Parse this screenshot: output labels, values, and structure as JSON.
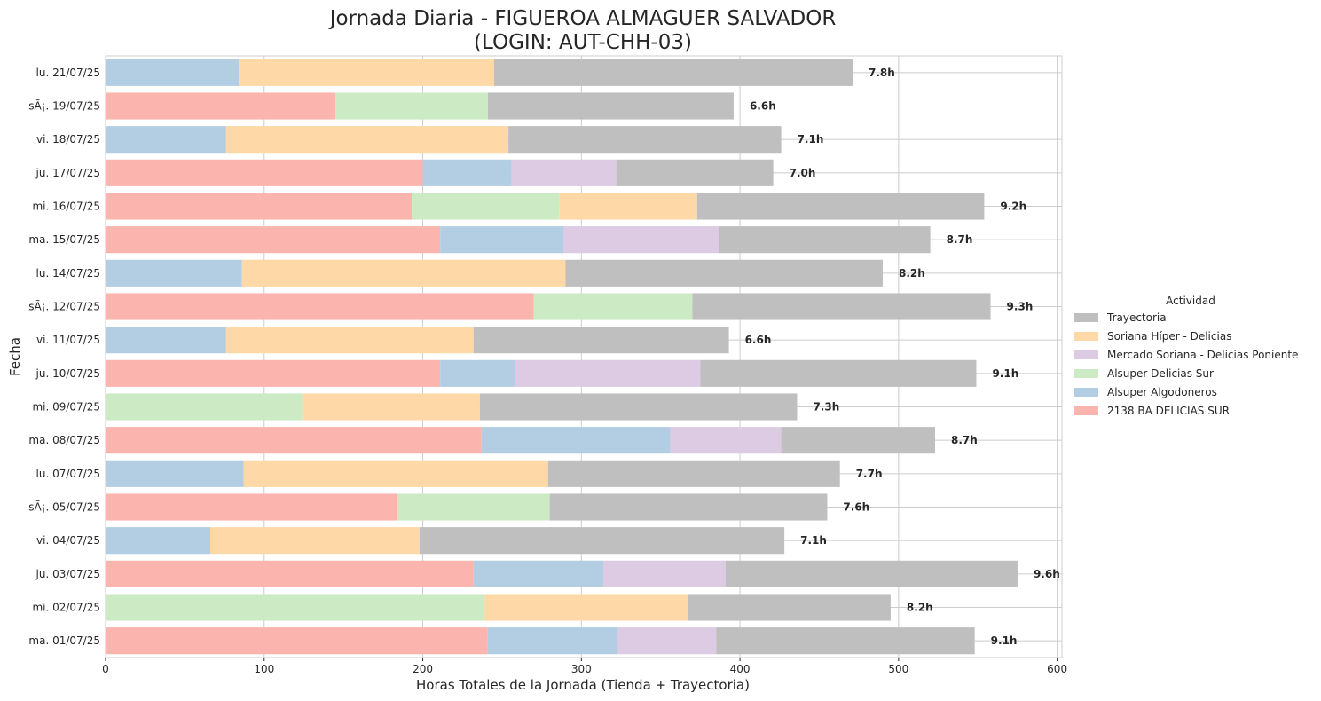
{
  "chart_data": {
    "type": "bar",
    "orientation": "horizontal",
    "stacked": true,
    "title": "Jornada Diaria - FIGUEROA ALMAGUER SALVADOR",
    "subtitle": "(LOGIN: AUT-CHH-03)",
    "xlabel": "Horas Totales de la Jornada (Tienda + Trayectoria)",
    "ylabel": "Fecha",
    "xlim": [
      0,
      603
    ],
    "xticks": [
      0,
      100,
      200,
      300,
      400,
      500,
      600
    ],
    "grid": true,
    "legend_title": "Actividad",
    "legend_position": "right",
    "categories": [
      "lu. 21/07/25",
      "sÃ¡. 19/07/25",
      "vi. 18/07/25",
      "ju. 17/07/25",
      "mi. 16/07/25",
      "ma. 15/07/25",
      "lu. 14/07/25",
      "sÃ¡. 12/07/25",
      "vi. 11/07/25",
      "ju. 10/07/25",
      "mi. 09/07/25",
      "ma. 08/07/25",
      "lu. 07/07/25",
      "sÃ¡. 05/07/25",
      "vi. 04/07/25",
      "ju. 03/07/25",
      "mi. 02/07/25",
      "ma. 01/07/25"
    ],
    "totals_labels": [
      "7.8h",
      "6.6h",
      "7.1h",
      "7.0h",
      "9.2h",
      "8.7h",
      "8.2h",
      "9.3h",
      "6.6h",
      "9.1h",
      "7.3h",
      "8.7h",
      "7.7h",
      "7.6h",
      "7.1h",
      "9.6h",
      "8.2h",
      "9.1h"
    ],
    "stack_order": [
      "2138 BA DELICIAS SUR",
      "Alsuper Algodoneros",
      "Alsuper Delicias Sur",
      "Mercado Soriana - Delicias Poniente",
      "Soriana Híper - Delicias",
      "Trayectoria"
    ],
    "series": [
      {
        "name": "Trayectoria",
        "color": "#bfbfbf",
        "values": [
          226,
          155,
          172,
          99,
          181,
          133,
          200,
          188,
          161,
          174,
          200,
          97,
          184,
          175,
          230,
          184,
          128,
          163
        ]
      },
      {
        "name": "Soriana Híper - Delicias",
        "color": "#fed8a6",
        "values": [
          161,
          0,
          178,
          0,
          87,
          0,
          204,
          0,
          156,
          0,
          112,
          0,
          192,
          0,
          132,
          0,
          128,
          0
        ]
      },
      {
        "name": "Mercado Soriana - Delicias Poniente",
        "color": "#ddcae3",
        "values": [
          0,
          0,
          0,
          66,
          0,
          98,
          0,
          0,
          0,
          117,
          0,
          70,
          0,
          0,
          0,
          77,
          0,
          62
        ]
      },
      {
        "name": "Alsuper Delicias Sur",
        "color": "#ccebc5",
        "values": [
          0,
          96,
          0,
          0,
          93,
          0,
          0,
          100,
          0,
          0,
          124,
          0,
          0,
          96,
          0,
          0,
          239,
          0
        ]
      },
      {
        "name": "Alsuper Algodoneros",
        "color": "#b3cde3",
        "values": [
          84,
          0,
          76,
          56,
          0,
          78,
          86,
          0,
          76,
          47,
          0,
          119,
          87,
          0,
          66,
          82,
          0,
          82
        ]
      },
      {
        "name": "2138 BA DELICIAS SUR",
        "color": "#fbb4ae",
        "values": [
          0,
          145,
          0,
          200,
          193,
          211,
          0,
          270,
          0,
          211,
          0,
          237,
          0,
          184,
          0,
          232,
          0,
          241
        ]
      }
    ]
  }
}
